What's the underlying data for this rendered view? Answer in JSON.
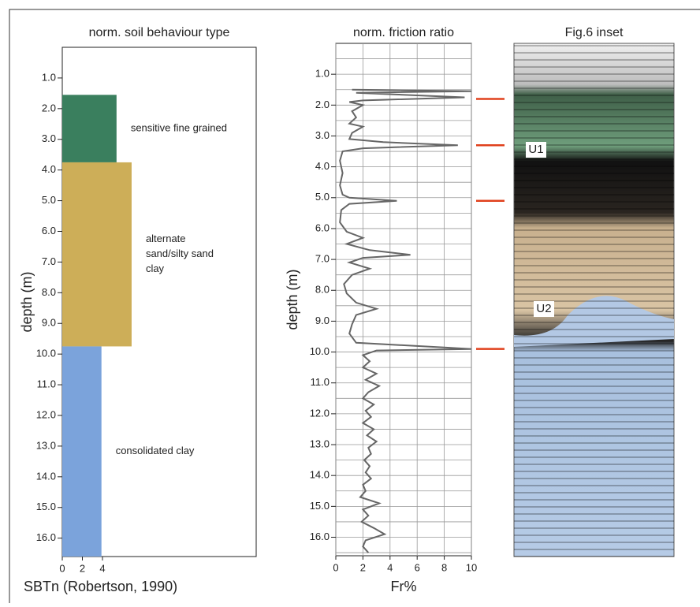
{
  "chart_data": [
    {
      "type": "bar",
      "orientation": "horizontal",
      "title": "norm. soil behaviour type",
      "xlabel": "SBTn (Robertson, 1990)",
      "ylabel": "depth (m)",
      "xlim": [
        0,
        19.3
      ],
      "xticks": [
        0,
        2,
        4
      ],
      "ylim": [
        0,
        16.6
      ],
      "y_inverted": true,
      "yticks": [
        {
          "value": 1,
          "label": "1.0"
        },
        {
          "value": 2,
          "label": "2.0"
        },
        {
          "value": 3,
          "label": "3.0"
        },
        {
          "value": 4,
          "label": "4.0"
        },
        {
          "value": 5,
          "label": "5.0"
        },
        {
          "value": 6,
          "label": "6.0"
        },
        {
          "value": 7,
          "label": "7.0"
        },
        {
          "value": 8,
          "label": "8.0"
        },
        {
          "value": 9,
          "label": "9.0"
        },
        {
          "value": 10,
          "label": "10.0"
        },
        {
          "value": 11,
          "label": "11.0"
        },
        {
          "value": 12,
          "label": "12.0"
        },
        {
          "value": 13,
          "label": "13.0"
        },
        {
          "value": 14,
          "label": "14.0"
        },
        {
          "value": 15,
          "label": "15.0"
        },
        {
          "value": 16,
          "label": "16.0"
        }
      ],
      "zones": [
        {
          "label": [
            "sensitive fine grained"
          ],
          "top": 1.55,
          "bottom": 3.75,
          "value": 5.4,
          "color": "#3a7f5e"
        },
        {
          "label": [
            "alternate",
            "sand/silty sand",
            "clay"
          ],
          "top": 3.75,
          "bottom": 9.75,
          "value": 6.9,
          "color": "#cdae58"
        },
        {
          "label": [
            "consolidated clay"
          ],
          "top": 9.75,
          "bottom": 16.6,
          "value": 3.9,
          "color": "#7ba3db"
        }
      ]
    },
    {
      "type": "line",
      "title": "norm. friction ratio",
      "xlabel": "Fr%",
      "ylabel": "depth (m)",
      "xlim": [
        0,
        10
      ],
      "xticks": [
        0,
        2,
        4,
        6,
        8,
        10
      ],
      "ylim": [
        0,
        16.6
      ],
      "y_inverted": true,
      "grid": true,
      "color": "#666666",
      "yticks": [
        {
          "value": 1,
          "label": "1.0"
        },
        {
          "value": 2,
          "label": "2.0"
        },
        {
          "value": 3,
          "label": "3.0"
        },
        {
          "value": 4,
          "label": "4.0"
        },
        {
          "value": 5,
          "label": "5.0"
        },
        {
          "value": 6,
          "label": "6.0"
        },
        {
          "value": 7,
          "label": "7.0"
        },
        {
          "value": 8,
          "label": "8.0"
        },
        {
          "value": 9,
          "label": "9.0"
        },
        {
          "value": 10,
          "label": "10.0"
        },
        {
          "value": 11,
          "label": "11.0"
        },
        {
          "value": 12,
          "label": "12.0"
        },
        {
          "value": 13,
          "label": "13.0"
        },
        {
          "value": 14,
          "label": "14.0"
        },
        {
          "value": 15,
          "label": "15.0"
        },
        {
          "value": 16,
          "label": "16.0"
        }
      ],
      "ygrid": [
        0.5,
        1,
        1.5,
        2,
        2.5,
        3,
        3.5,
        4,
        4.5,
        5,
        5.5,
        6,
        6.5,
        7,
        7.5,
        8,
        8.5,
        9,
        9.5,
        10,
        10.5,
        11,
        11.5,
        12,
        12.5,
        13,
        13.5,
        14,
        14.5,
        15,
        15.5,
        16,
        16.5
      ],
      "depth": [
        1.5,
        1.55,
        1.6,
        1.75,
        1.85,
        1.9,
        2.0,
        2.2,
        2.4,
        2.6,
        2.7,
        2.9,
        3.1,
        3.2,
        3.3,
        3.4,
        3.5,
        3.8,
        4.2,
        4.6,
        4.9,
        5.0,
        5.1,
        5.2,
        5.4,
        5.8,
        6.1,
        6.3,
        6.5,
        6.7,
        6.85,
        6.95,
        7.1,
        7.3,
        7.5,
        7.8,
        8.1,
        8.4,
        8.6,
        8.8,
        9.1,
        9.4,
        9.7,
        9.85,
        9.9,
        9.95,
        10.1,
        10.3,
        10.5,
        10.7,
        10.9,
        11.1,
        11.3,
        11.5,
        11.7,
        11.9,
        12.1,
        12.3,
        12.5,
        12.7,
        12.9,
        13.1,
        13.3,
        13.5,
        13.7,
        13.9,
        14.1,
        14.3,
        14.5,
        14.7,
        14.9,
        15.1,
        15.3,
        15.5,
        15.7,
        15.9,
        16.1,
        16.3,
        16.5
      ],
      "values": [
        1.2,
        10,
        1.5,
        9.5,
        2,
        1.0,
        2.0,
        1.2,
        1.5,
        1.0,
        2.0,
        1.2,
        1.0,
        3.5,
        9.0,
        2.0,
        0.5,
        0.3,
        0.5,
        0.3,
        0.5,
        1.0,
        4.5,
        1.0,
        0.4,
        0.3,
        0.8,
        2.0,
        0.8,
        2.5,
        5.5,
        2.0,
        1.0,
        2.5,
        1.2,
        0.6,
        0.8,
        1.5,
        3.0,
        1.5,
        1.2,
        1.0,
        1.5,
        8.0,
        10,
        3.0,
        2.0,
        2.5,
        2.0,
        3.0,
        2.2,
        3.2,
        2.4,
        2.0,
        2.8,
        2.2,
        2.6,
        2.0,
        2.8,
        2.3,
        3.0,
        2.4,
        2.6,
        2.1,
        2.5,
        2.2,
        2.6,
        2.0,
        2.2,
        1.8,
        3.2,
        2.0,
        2.4,
        1.9,
        2.8,
        3.6,
        2.2,
        2.0,
        2.4
      ],
      "horizons": [
        1.8,
        3.3,
        5.1,
        9.9
      ],
      "horizon_color": "#e0401c"
    },
    {
      "type": "image",
      "title": "Fig.6 inset",
      "labels": [
        "U1",
        "U2"
      ]
    }
  ]
}
